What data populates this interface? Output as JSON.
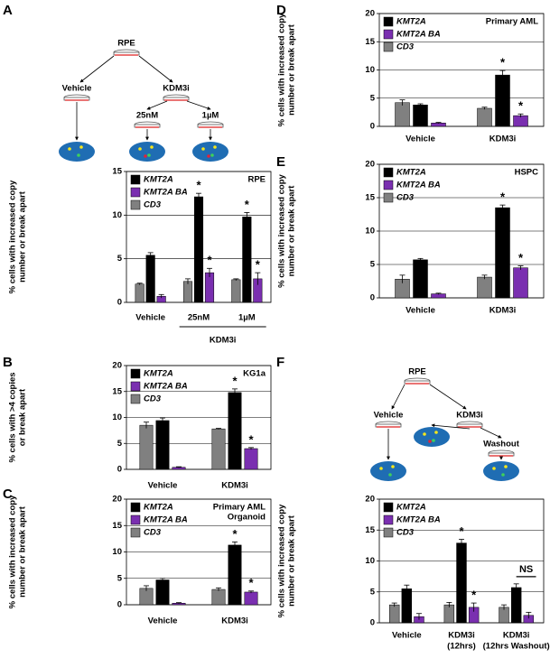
{
  "chart_data": [
    {
      "type": "bar",
      "panel": "A",
      "title": "RPE",
      "diagram": {
        "root": "RPE",
        "left": "Vehicle",
        "right": "KDM3i",
        "branches": [
          "25nM",
          "1µM"
        ]
      },
      "ylabel": [
        "% cells with increased copy",
        "number or break apart"
      ],
      "categories": [
        "Vehicle",
        "25nM",
        "1µM"
      ],
      "group": {
        "label": "KDM3i",
        "from": 1,
        "to": 2
      },
      "series": [
        {
          "name": "KMT2A",
          "color": "#000000",
          "values": [
            5.4,
            12.1,
            9.8
          ],
          "errors": [
            0.3,
            0.4,
            0.5
          ],
          "markers": [
            null,
            "*",
            "*"
          ]
        },
        {
          "name": "KMT2A BA",
          "color": "#7a2fb0",
          "values": [
            0.7,
            3.4,
            2.7
          ],
          "errors": [
            0.2,
            0.5,
            0.7
          ],
          "markers": [
            null,
            "*",
            "*"
          ]
        },
        {
          "name": "CD3",
          "color": "#808080",
          "values": [
            2.1,
            2.4,
            2.6
          ],
          "errors": [
            0.1,
            0.3,
            0.1
          ],
          "markers": [
            null,
            null,
            null
          ]
        }
      ],
      "ylim": [
        0,
        15
      ],
      "yticks": [
        0,
        5,
        10,
        15
      ],
      "grid": true,
      "legend": "top-left"
    },
    {
      "type": "bar",
      "panel": "B",
      "title": "KG1a",
      "ylabel": [
        "% cells with >4 copies",
        "or break apart"
      ],
      "categories": [
        "Vehicle",
        "KDM3i"
      ],
      "series": [
        {
          "name": "KMT2A",
          "color": "#000000",
          "values": [
            9.4,
            14.8
          ],
          "errors": [
            0.5,
            0.7
          ],
          "markers": [
            null,
            "*"
          ]
        },
        {
          "name": "KMT2A BA",
          "color": "#7a2fb0",
          "values": [
            0.4,
            4.0
          ],
          "errors": [
            0.1,
            0.2
          ],
          "markers": [
            null,
            "*"
          ]
        },
        {
          "name": "CD3",
          "color": "#808080",
          "values": [
            8.5,
            7.8
          ],
          "errors": [
            0.6,
            0.1
          ],
          "markers": [
            null,
            null
          ]
        }
      ],
      "ylim": [
        0,
        20
      ],
      "yticks": [
        0,
        5,
        10,
        15,
        20
      ],
      "grid": true,
      "legend": "top-left"
    },
    {
      "type": "bar",
      "panel": "C",
      "title": [
        "Primary AML",
        "Organoid"
      ],
      "ylabel": [
        "% cells with increased copy",
        "number or break apart"
      ],
      "categories": [
        "Vehicle",
        "KDM3i"
      ],
      "series": [
        {
          "name": "KMT2A",
          "color": "#000000",
          "values": [
            4.7,
            11.3
          ],
          "errors": [
            0.3,
            0.6
          ],
          "markers": [
            null,
            "*"
          ]
        },
        {
          "name": "KMT2A BA",
          "color": "#7a2fb0",
          "values": [
            0.3,
            2.4
          ],
          "errors": [
            0.1,
            0.2
          ],
          "markers": [
            null,
            "*"
          ]
        },
        {
          "name": "CD3",
          "color": "#808080",
          "values": [
            3.1,
            2.9
          ],
          "errors": [
            0.5,
            0.3
          ],
          "markers": [
            null,
            null
          ]
        }
      ],
      "ylim": [
        0,
        20
      ],
      "yticks": [
        0,
        5,
        10,
        15,
        20
      ],
      "grid": true,
      "legend": "top-left"
    },
    {
      "type": "bar",
      "panel": "D",
      "title": "Primary AML",
      "ylabel": [
        "% cells with increased copy",
        "number or break apart"
      ],
      "categories": [
        "Vehicle",
        "KDM3i"
      ],
      "series": [
        {
          "name": "KMT2A",
          "color": "#000000",
          "values": [
            3.8,
            9.1
          ],
          "errors": [
            0.2,
            0.8
          ],
          "markers": [
            null,
            "*"
          ]
        },
        {
          "name": "KMT2A BA",
          "color": "#7a2fb0",
          "values": [
            0.6,
            1.9
          ],
          "errors": [
            0.1,
            0.3
          ],
          "markers": [
            null,
            "*"
          ]
        },
        {
          "name": "CD3",
          "color": "#808080",
          "values": [
            4.2,
            3.2
          ],
          "errors": [
            0.5,
            0.2
          ],
          "markers": [
            null,
            null
          ]
        }
      ],
      "ylim": [
        0,
        20
      ],
      "yticks": [
        0,
        5,
        10,
        15,
        20
      ],
      "grid": true,
      "legend": "top-left"
    },
    {
      "type": "bar",
      "panel": "E",
      "title": "HSPC",
      "ylabel": [
        "% cells with increased copy",
        "number or break apart"
      ],
      "categories": [
        "Vehicle",
        "KDM3i"
      ],
      "series": [
        {
          "name": "KMT2A",
          "color": "#000000",
          "values": [
            5.7,
            13.5
          ],
          "errors": [
            0.2,
            0.4
          ],
          "markers": [
            null,
            "*"
          ]
        },
        {
          "name": "KMT2A BA",
          "color": "#7a2fb0",
          "values": [
            0.6,
            4.5
          ],
          "errors": [
            0.1,
            0.3
          ],
          "markers": [
            null,
            "*"
          ]
        },
        {
          "name": "CD3",
          "color": "#808080",
          "values": [
            2.8,
            3.1
          ],
          "errors": [
            0.6,
            0.3
          ],
          "markers": [
            null,
            null
          ]
        }
      ],
      "ylim": [
        0,
        20
      ],
      "yticks": [
        0,
        5,
        10,
        15,
        20
      ],
      "grid": true,
      "legend": "top-left"
    },
    {
      "type": "bar",
      "panel": "F",
      "diagram": {
        "root": "RPE",
        "left": "Vehicle",
        "right": "KDM3i",
        "branches": [
          "Washout"
        ]
      },
      "ylabel": [
        "% cells with increased copy",
        "number or break apart"
      ],
      "categories": [
        "Vehicle",
        [
          "KDM3i",
          "(12hrs)"
        ],
        [
          "KDM3i",
          "(12hrs Washout)"
        ]
      ],
      "bracket_label": {
        "text": "NS",
        "category": 2
      },
      "series": [
        {
          "name": "KMT2A",
          "color": "#000000",
          "values": [
            5.5,
            12.9,
            5.7
          ],
          "errors": [
            0.6,
            0.6,
            0.6
          ],
          "markers": [
            null,
            "*",
            null
          ]
        },
        {
          "name": "KMT2A BA",
          "color": "#7a2fb0",
          "values": [
            1.0,
            2.5,
            1.2
          ],
          "errors": [
            0.5,
            0.7,
            0.5
          ],
          "markers": [
            null,
            "*",
            null
          ]
        },
        {
          "name": "CD3",
          "color": "#808080",
          "values": [
            2.9,
            2.9,
            2.5
          ],
          "errors": [
            0.3,
            0.4,
            0.4
          ],
          "markers": [
            null,
            null,
            null
          ]
        }
      ],
      "ylim": [
        0,
        20
      ],
      "yticks": [
        0,
        5,
        10,
        15,
        20
      ],
      "grid": true,
      "legend": "top-left"
    }
  ]
}
